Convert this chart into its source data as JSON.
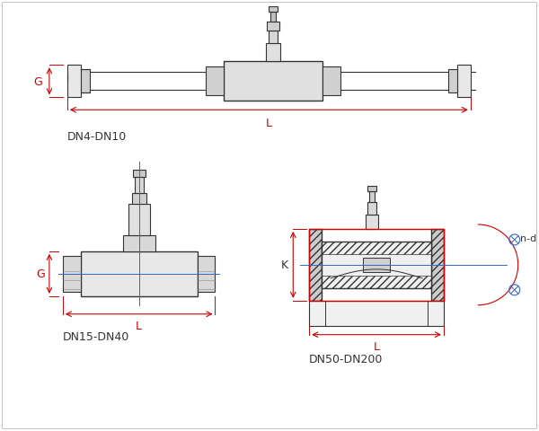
{
  "title": "",
  "bg_color": "#ffffff",
  "line_color": "#333333",
  "dim_color_red": "#cc0000",
  "dim_color_blue": "#3366cc",
  "hatch_color": "#555555",
  "labels": {
    "top": "DN4-DN10",
    "bottom_left": "DN15-DN40",
    "bottom_right": "DN50-DN200",
    "G": "G",
    "L": "L",
    "K": "K",
    "nd": "n-d"
  }
}
